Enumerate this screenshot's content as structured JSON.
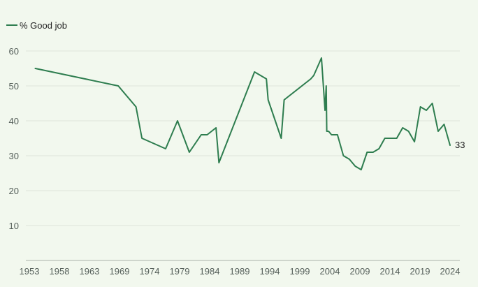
{
  "chart_data": {
    "type": "line",
    "title": "",
    "xlabel": "",
    "ylabel": "",
    "ylim": [
      0,
      60
    ],
    "xlim": [
      1953,
      2024
    ],
    "y_ticks": [
      10,
      20,
      30,
      40,
      50,
      60
    ],
    "x_tick_labels": [
      "1953",
      "1958",
      "1963",
      "1969",
      "1974",
      "1979",
      "1984",
      "1989",
      "1994",
      "1999",
      "2004",
      "2009",
      "2014",
      "2019",
      "2024"
    ],
    "grid": "horizontal",
    "legend_position": "top-left",
    "color": "#2e7d4f",
    "end_label": "33",
    "series": [
      {
        "name": "% Good job",
        "x": [
          1954,
          1968,
          1971,
          1972,
          1976,
          1978,
          1980,
          1982,
          1983,
          1984.5,
          1985,
          1991,
          1993,
          1993.3,
          1995.5,
          1996,
          2000.5,
          2001,
          2002.3,
          2002.9,
          2003.1,
          2003.2,
          2003.5,
          2004,
          2005,
          2006,
          2007,
          2008,
          2009,
          2010,
          2011,
          2012,
          2013,
          2015,
          2016,
          2017,
          2018,
          2019,
          2020,
          2021,
          2022,
          2023,
          2024
        ],
        "values": [
          55,
          50,
          44,
          35,
          32,
          40,
          31,
          36,
          36,
          38,
          28,
          54,
          52,
          46,
          35,
          46,
          52,
          53,
          58,
          43,
          50,
          37,
          37,
          36,
          36,
          30,
          29,
          27,
          26,
          31,
          31,
          32,
          35,
          35,
          38,
          37,
          34,
          44,
          43,
          45,
          37,
          39,
          33
        ]
      }
    ]
  }
}
